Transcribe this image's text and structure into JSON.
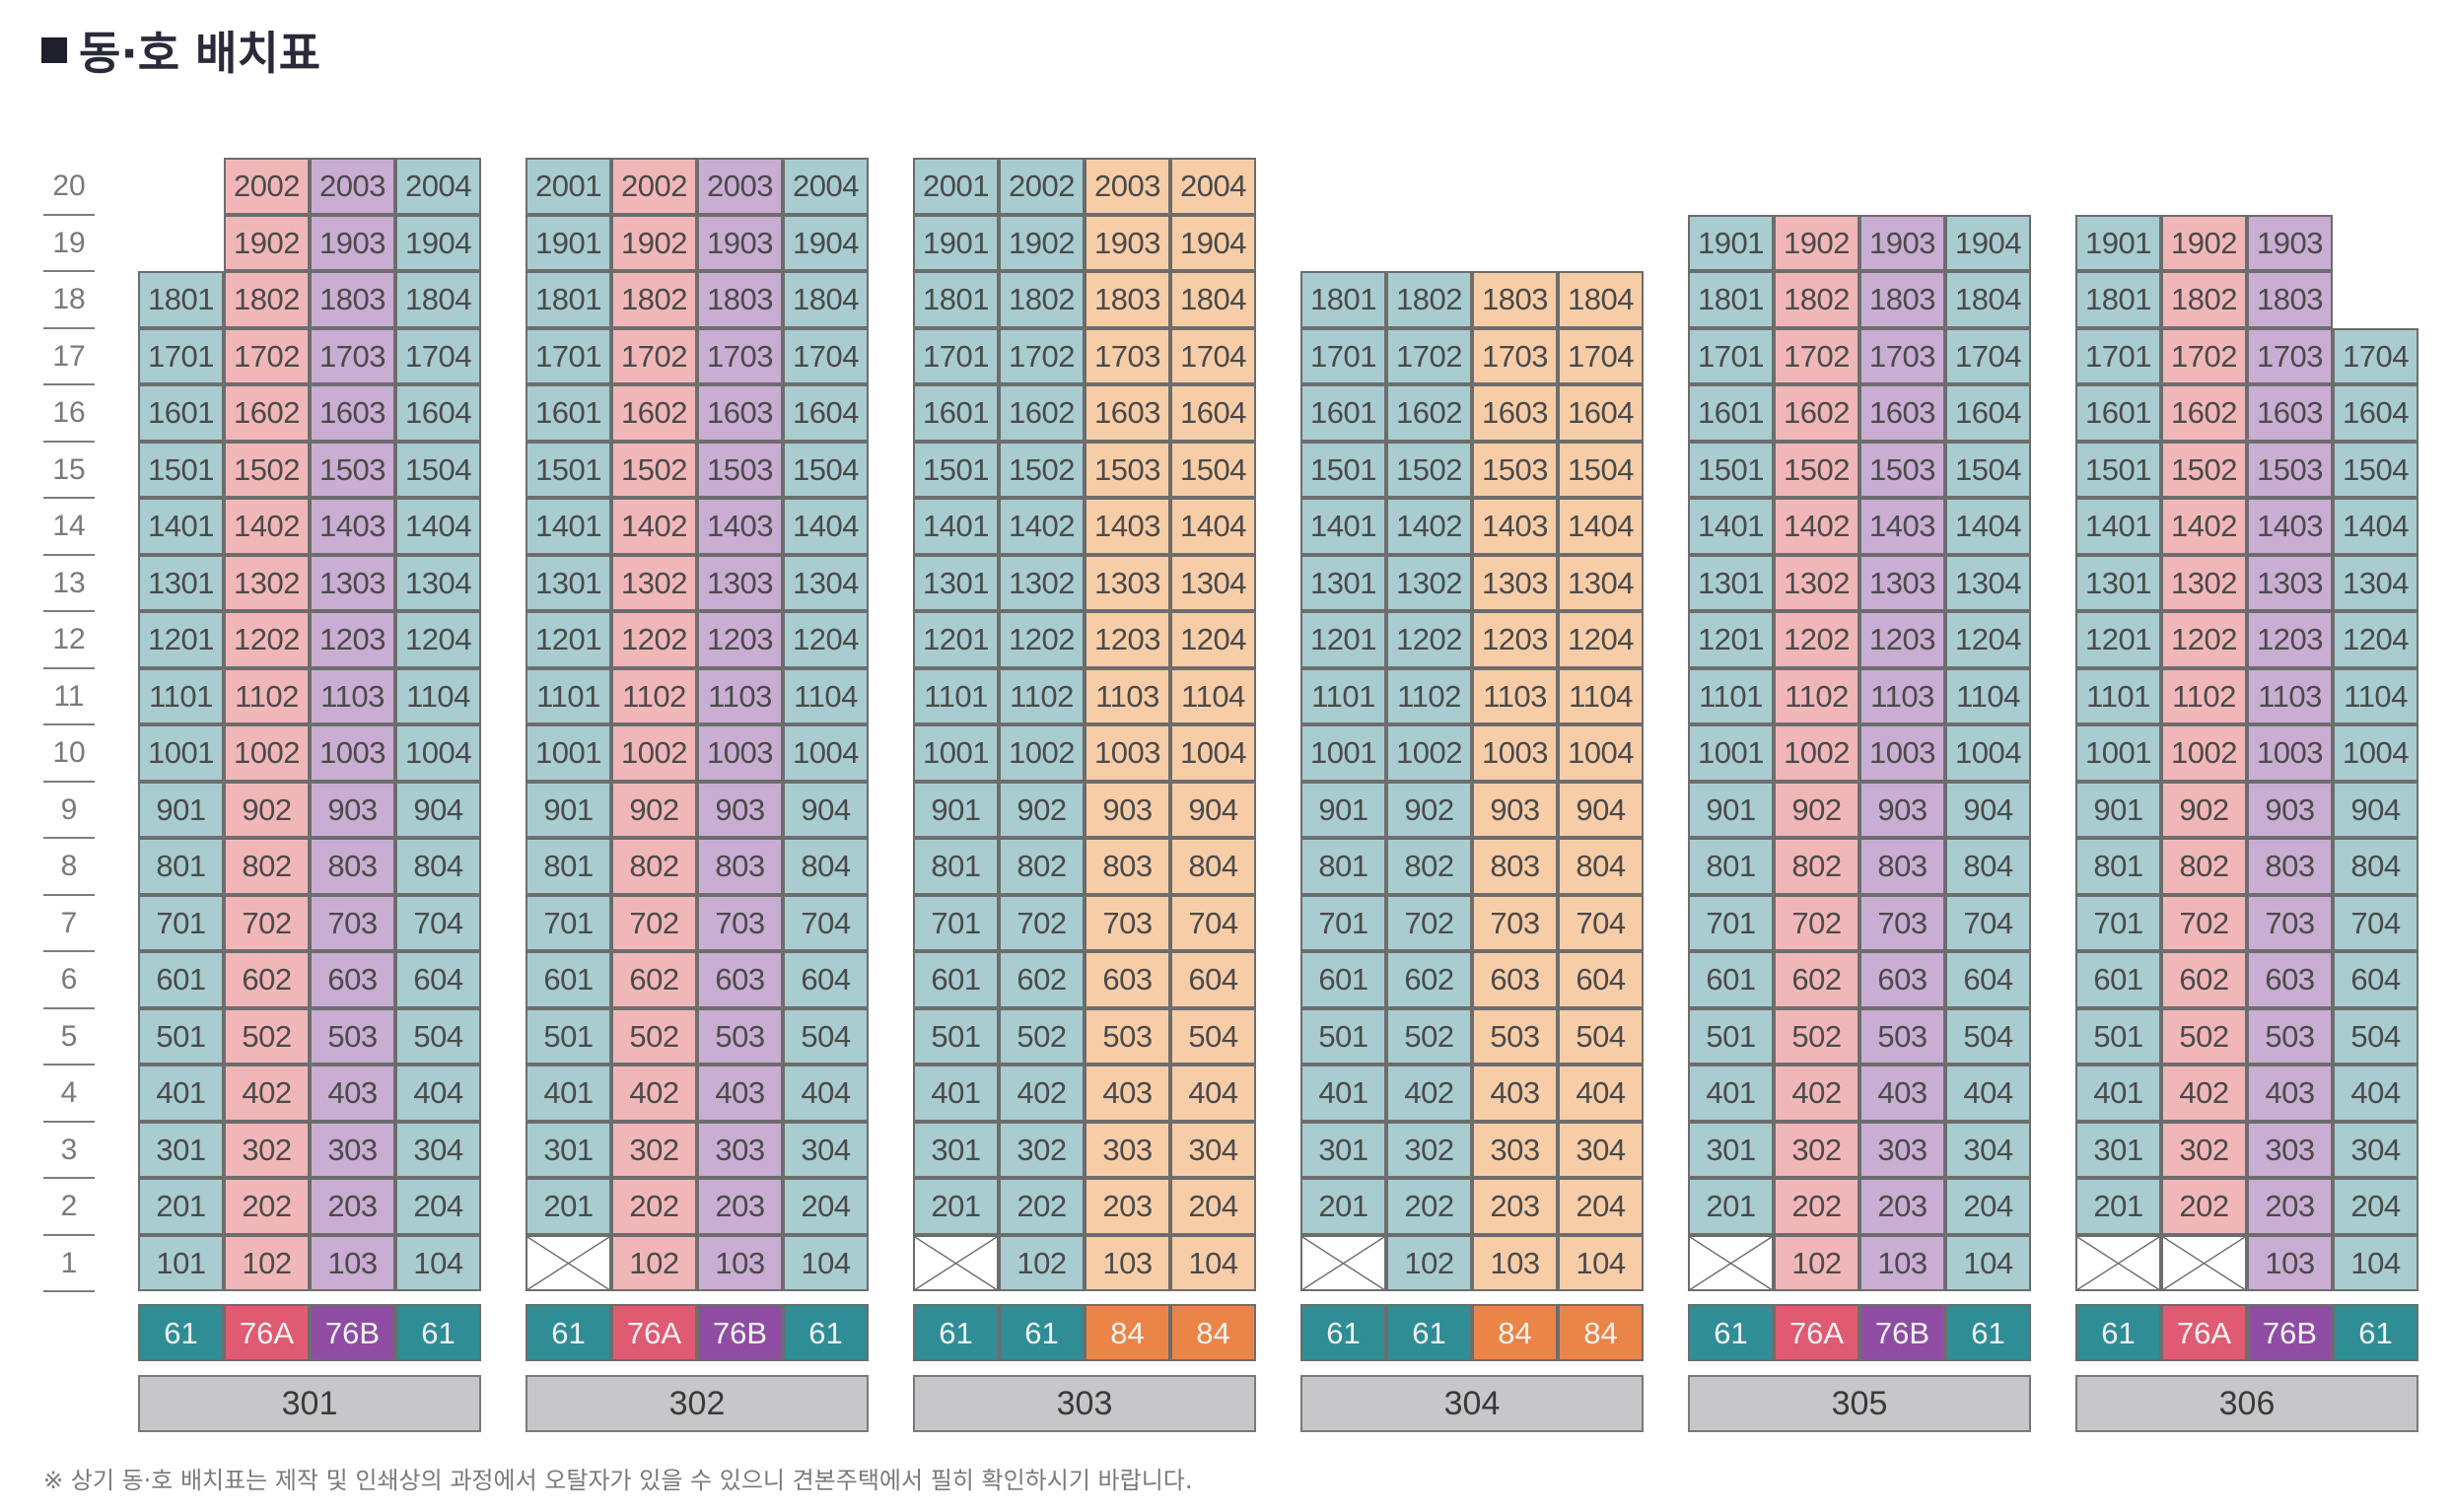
{
  "title": "동·호 배치표",
  "footnote": "※ 상기 동·호 배치표는 제작 및 인쇄상의 과정에서 오탈자가 있을 수 있으니 견본주택에서 필히 확인하시기 바랍니다.",
  "floors": [
    "20",
    "19",
    "18",
    "17",
    "16",
    "15",
    "14",
    "13",
    "12",
    "11",
    "10",
    "9",
    "8",
    "7",
    "6",
    "5",
    "4",
    "3",
    "2",
    "1"
  ],
  "chart_data": {
    "type": "table",
    "description_of_cells": "unit numbers = floor*100 + line",
    "buildings": [
      {
        "name": "301",
        "types": [
          "61",
          "76A",
          "76B",
          "61"
        ],
        "top_floors": [
          18,
          20,
          20,
          20
        ],
        "empty_units": []
      },
      {
        "name": "302",
        "types": [
          "61",
          "76A",
          "76B",
          "61"
        ],
        "top_floors": [
          20,
          20,
          20,
          20
        ],
        "empty_units": [
          "101"
        ]
      },
      {
        "name": "303",
        "types": [
          "61",
          "61",
          "84",
          "84"
        ],
        "top_floors": [
          20,
          20,
          20,
          20
        ],
        "empty_units": [
          "101"
        ]
      },
      {
        "name": "304",
        "types": [
          "61",
          "61",
          "84",
          "84"
        ],
        "top_floors": [
          18,
          18,
          18,
          18
        ],
        "empty_units": [
          "101"
        ]
      },
      {
        "name": "305",
        "types": [
          "61",
          "76A",
          "76B",
          "61"
        ],
        "top_floors": [
          19,
          19,
          19,
          19
        ],
        "empty_units": [
          "101"
        ]
      },
      {
        "name": "306",
        "types": [
          "61",
          "76A",
          "76B",
          "61"
        ],
        "top_floors": [
          19,
          19,
          19,
          17
        ],
        "empty_units": [
          "101",
          "102"
        ]
      }
    ]
  },
  "colors": {
    "61": "#a8ccd0",
    "76A": "#f1b7b8",
    "76B": "#c9add2",
    "84": "#f7cda8",
    "type61": "#2f8d96",
    "type76A": "#e05a72",
    "type76B": "#8e4da3",
    "type84": "#ea8547"
  }
}
